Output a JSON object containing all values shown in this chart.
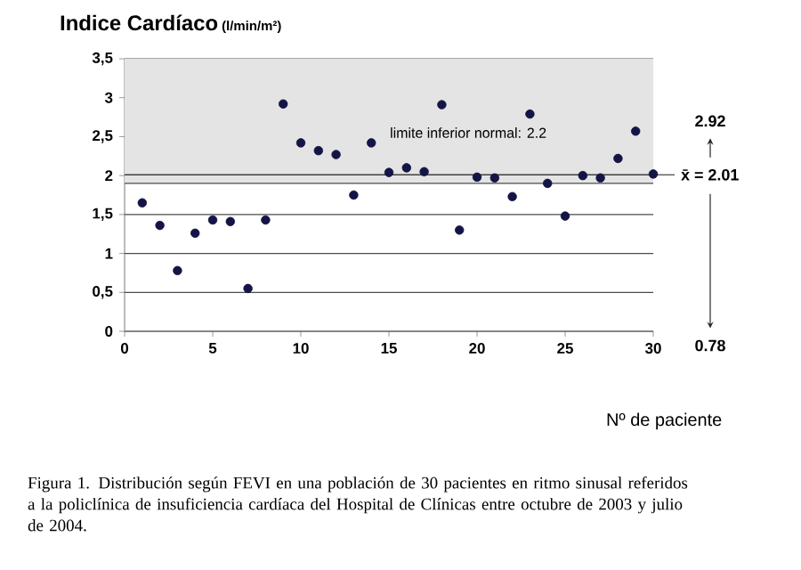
{
  "chart_data": {
    "type": "scatter",
    "title": "Indice Cardíaco",
    "subtitle": "(l/min/m²)",
    "xlabel": "Nº de paciente",
    "x": [
      1,
      2,
      3,
      4,
      5,
      6,
      7,
      8,
      9,
      10,
      11,
      12,
      13,
      14,
      15,
      16,
      17,
      18,
      19,
      20,
      21,
      22,
      23,
      24,
      25,
      26,
      27,
      28,
      29,
      30
    ],
    "series": [
      {
        "color": "#141446",
        "values": [
          1.65,
          1.36,
          0.78,
          1.26,
          1.43,
          1.41,
          0.55,
          1.43,
          2.92,
          2.42,
          2.32,
          2.27,
          1.75,
          2.42,
          2.04,
          2.1,
          2.05,
          2.91,
          1.3,
          1.98,
          1.97,
          1.73,
          2.79,
          1.9,
          1.48,
          2.0,
          1.97,
          2.22,
          2.57,
          2.02
        ]
      }
    ],
    "marker": "circle",
    "xlim": [
      0,
      30
    ],
    "xticks": [
      0,
      5,
      10,
      15,
      20,
      25,
      30
    ],
    "ylim": [
      0,
      3.5
    ],
    "yticks": [
      {
        "value": 0,
        "label": "0"
      },
      {
        "value": 0.5,
        "label": "0,5"
      },
      {
        "value": 1,
        "label": "1"
      },
      {
        "value": 1.5,
        "label": "1,5"
      },
      {
        "value": 2,
        "label": "2"
      },
      {
        "value": 2.5,
        "label": "2,5"
      },
      {
        "value": 3,
        "label": "3"
      },
      {
        "value": 3.5,
        "label": "3,5"
      }
    ],
    "grid": "y",
    "bands": [
      {
        "axis": "y",
        "from": 1.9,
        "to": 3.5,
        "label": "limite inferior normal: 2.2",
        "color": "#e4e4e4"
      }
    ],
    "ref_lines": [
      {
        "axis": "y",
        "value": 2.01,
        "label": "x̄ = 2.01",
        "color": "#404040"
      }
    ],
    "annotations": [
      "2.92",
      "0.78",
      "Figura 1. Distribución según FEVI en una población de 30 pacientes en ritmo sinusal referidos a la policlínica de insuficiencia cardíaca del Hospital de Clínicas entre octubre de 2003 y julio de 2004."
    ]
  }
}
